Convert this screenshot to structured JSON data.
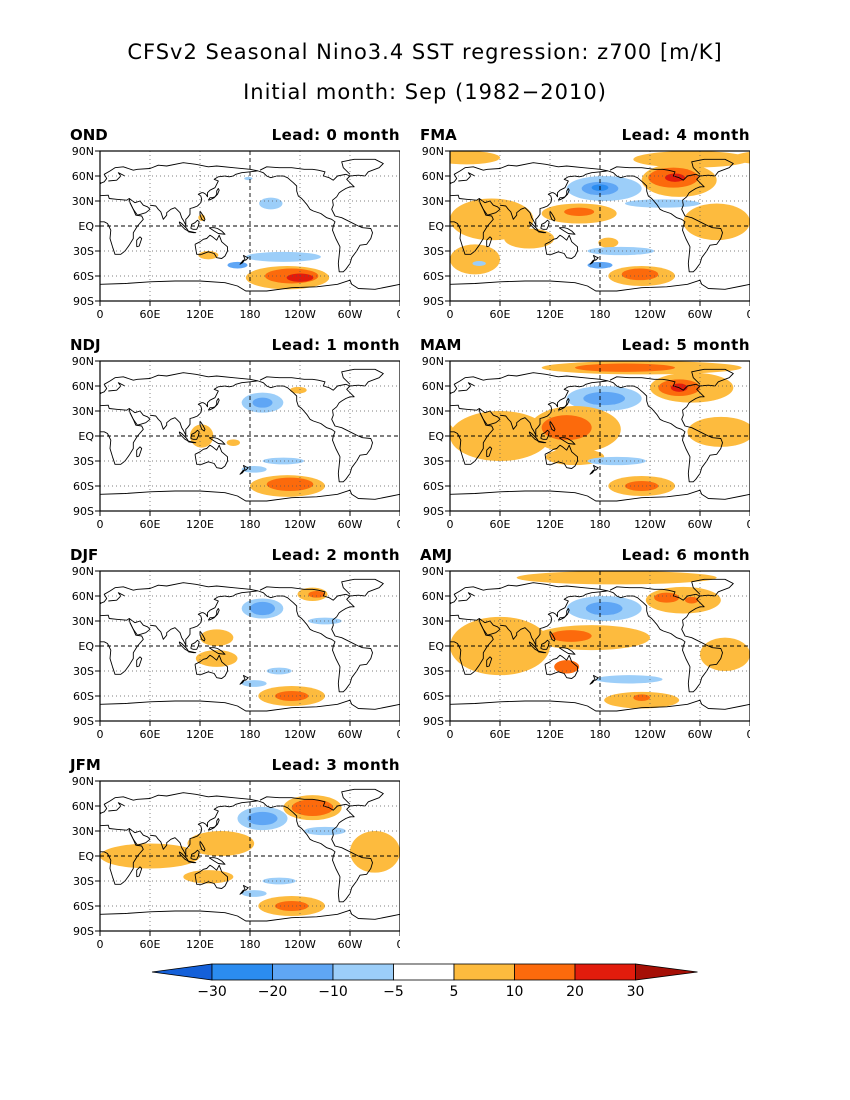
{
  "title": {
    "line1": "CFSv2 Seasonal Nino3.4 SST regression: z700 [m/K]",
    "line2": "Initial month: Sep (1982−2010)"
  },
  "panels": [
    {
      "season": "OND",
      "lead": "Lead: 0 month",
      "blobs": [
        {
          "lon": 178,
          "lat": 57,
          "rx": 5,
          "ry": 2,
          "level": -5
        },
        {
          "lon": 205,
          "lat": 27,
          "rx": 14,
          "ry": 7,
          "level": -5
        },
        {
          "lon": 122,
          "lat": 10,
          "rx": 4,
          "ry": 4,
          "level": 5
        },
        {
          "lon": 130,
          "lat": -35,
          "rx": 12,
          "ry": 5,
          "level": 5
        },
        {
          "lon": 220,
          "lat": -37,
          "rx": 45,
          "ry": 6,
          "level": -5
        },
        {
          "lon": 165,
          "lat": -47,
          "rx": 12,
          "ry": 4,
          "level": -10
        },
        {
          "lon": 225,
          "lat": -62,
          "rx": 50,
          "ry": 14,
          "level": 5
        },
        {
          "lon": 230,
          "lat": -60,
          "rx": 32,
          "ry": 9,
          "level": 10
        },
        {
          "lon": 240,
          "lat": -62,
          "rx": 16,
          "ry": 5,
          "level": 20
        }
      ]
    },
    {
      "season": "FMA",
      "lead": "Lead: 4 month",
      "blobs": [
        {
          "lon": 20,
          "lat": 82,
          "rx": 40,
          "ry": 8,
          "level": 5
        },
        {
          "lon": 290,
          "lat": 80,
          "rx": 70,
          "ry": 10,
          "level": 5
        },
        {
          "lon": 275,
          "lat": 55,
          "rx": 45,
          "ry": 20,
          "level": 5
        },
        {
          "lon": 268,
          "lat": 58,
          "rx": 30,
          "ry": 12,
          "level": 10
        },
        {
          "lon": 270,
          "lat": 58,
          "rx": 12,
          "ry": 5,
          "level": 20
        },
        {
          "lon": 185,
          "lat": 45,
          "rx": 45,
          "ry": 15,
          "level": -5
        },
        {
          "lon": 180,
          "lat": 45,
          "rx": 22,
          "ry": 8,
          "level": -10
        },
        {
          "lon": 180,
          "lat": 46,
          "rx": 10,
          "ry": 4,
          "level": -20
        },
        {
          "lon": 255,
          "lat": 27,
          "rx": 45,
          "ry": 5,
          "level": -5
        },
        {
          "lon": 50,
          "lat": 8,
          "rx": 50,
          "ry": 25,
          "level": 5
        },
        {
          "lon": 155,
          "lat": 15,
          "rx": 45,
          "ry": 12,
          "level": 5
        },
        {
          "lon": 155,
          "lat": 17,
          "rx": 18,
          "ry": 5,
          "level": 10
        },
        {
          "lon": 320,
          "lat": 5,
          "rx": 40,
          "ry": 22,
          "level": 5
        },
        {
          "lon": 30,
          "lat": -40,
          "rx": 30,
          "ry": 18,
          "level": 5
        },
        {
          "lon": 95,
          "lat": -15,
          "rx": 30,
          "ry": 12,
          "level": 5
        },
        {
          "lon": 190,
          "lat": -20,
          "rx": 12,
          "ry": 6,
          "level": 5
        },
        {
          "lon": 205,
          "lat": -30,
          "rx": 40,
          "ry": 5,
          "level": -5
        },
        {
          "lon": 35,
          "lat": -45,
          "rx": 8,
          "ry": 3,
          "level": -5
        },
        {
          "lon": 180,
          "lat": -47,
          "rx": 15,
          "ry": 4,
          "level": -10
        },
        {
          "lon": 230,
          "lat": -60,
          "rx": 40,
          "ry": 12,
          "level": 5
        },
        {
          "lon": 228,
          "lat": -58,
          "rx": 22,
          "ry": 7,
          "level": 10
        }
      ]
    },
    {
      "season": "NDJ",
      "lead": "Lead: 1 month",
      "blobs": [
        {
          "lon": 238,
          "lat": 55,
          "rx": 10,
          "ry": 4,
          "level": 5
        },
        {
          "lon": 195,
          "lat": 40,
          "rx": 25,
          "ry": 12,
          "level": -5
        },
        {
          "lon": 195,
          "lat": 40,
          "rx": 12,
          "ry": 6,
          "level": -10
        },
        {
          "lon": 122,
          "lat": 0,
          "rx": 14,
          "ry": 14,
          "level": 5
        },
        {
          "lon": 160,
          "lat": -8,
          "rx": 8,
          "ry": 4,
          "level": 5
        },
        {
          "lon": 220,
          "lat": -30,
          "rx": 25,
          "ry": 4,
          "level": -5
        },
        {
          "lon": 185,
          "lat": -40,
          "rx": 15,
          "ry": 4,
          "level": -5
        },
        {
          "lon": 225,
          "lat": -60,
          "rx": 45,
          "ry": 13,
          "level": 5
        },
        {
          "lon": 228,
          "lat": -58,
          "rx": 28,
          "ry": 8,
          "level": 10
        }
      ]
    },
    {
      "season": "MAM",
      "lead": "Lead: 5 month",
      "blobs": [
        {
          "lon": 230,
          "lat": 82,
          "rx": 120,
          "ry": 8,
          "level": 5
        },
        {
          "lon": 210,
          "lat": 82,
          "rx": 60,
          "ry": 5,
          "level": 10
        },
        {
          "lon": 290,
          "lat": 58,
          "rx": 50,
          "ry": 18,
          "level": 5
        },
        {
          "lon": 275,
          "lat": 58,
          "rx": 25,
          "ry": 10,
          "level": 10
        },
        {
          "lon": 275,
          "lat": 58,
          "rx": 10,
          "ry": 5,
          "level": 20
        },
        {
          "lon": 185,
          "lat": 45,
          "rx": 45,
          "ry": 15,
          "level": -5
        },
        {
          "lon": 185,
          "lat": 45,
          "rx": 25,
          "ry": 8,
          "level": -10
        },
        {
          "lon": 60,
          "lat": 0,
          "rx": 60,
          "ry": 30,
          "level": 5
        },
        {
          "lon": 150,
          "lat": 8,
          "rx": 55,
          "ry": 28,
          "level": 5
        },
        {
          "lon": 140,
          "lat": 10,
          "rx": 30,
          "ry": 15,
          "level": 10
        },
        {
          "lon": 325,
          "lat": 5,
          "rx": 40,
          "ry": 18,
          "level": 5
        },
        {
          "lon": 150,
          "lat": -25,
          "rx": 35,
          "ry": 10,
          "level": 5
        },
        {
          "lon": 200,
          "lat": -30,
          "rx": 35,
          "ry": 5,
          "level": -5
        },
        {
          "lon": 230,
          "lat": -60,
          "rx": 40,
          "ry": 12,
          "level": 5
        },
        {
          "lon": 230,
          "lat": -60,
          "rx": 20,
          "ry": 6,
          "level": 10
        }
      ]
    },
    {
      "season": "DJF",
      "lead": "Lead: 2 month",
      "blobs": [
        {
          "lon": 255,
          "lat": 62,
          "rx": 18,
          "ry": 8,
          "level": 5
        },
        {
          "lon": 260,
          "lat": 62,
          "rx": 10,
          "ry": 4,
          "level": 10
        },
        {
          "lon": 195,
          "lat": 45,
          "rx": 25,
          "ry": 12,
          "level": -5
        },
        {
          "lon": 195,
          "lat": 45,
          "rx": 15,
          "ry": 8,
          "level": -10
        },
        {
          "lon": 270,
          "lat": 30,
          "rx": 20,
          "ry": 4,
          "level": -5
        },
        {
          "lon": 140,
          "lat": 10,
          "rx": 20,
          "ry": 10,
          "level": 5
        },
        {
          "lon": 140,
          "lat": -15,
          "rx": 25,
          "ry": 10,
          "level": 5
        },
        {
          "lon": 215,
          "lat": -30,
          "rx": 15,
          "ry": 4,
          "level": -5
        },
        {
          "lon": 185,
          "lat": -45,
          "rx": 15,
          "ry": 4,
          "level": -5
        },
        {
          "lon": 230,
          "lat": -60,
          "rx": 40,
          "ry": 12,
          "level": 5
        },
        {
          "lon": 230,
          "lat": -60,
          "rx": 20,
          "ry": 6,
          "level": 10
        }
      ]
    },
    {
      "season": "AMJ",
      "lead": "Lead: 6 month",
      "blobs": [
        {
          "lon": 200,
          "lat": 82,
          "rx": 120,
          "ry": 8,
          "level": 5
        },
        {
          "lon": 280,
          "lat": 55,
          "rx": 45,
          "ry": 16,
          "level": 5
        },
        {
          "lon": 260,
          "lat": 58,
          "rx": 15,
          "ry": 6,
          "level": 10
        },
        {
          "lon": 290,
          "lat": 55,
          "rx": 8,
          "ry": 4,
          "level": 10
        },
        {
          "lon": 185,
          "lat": 45,
          "rx": 45,
          "ry": 15,
          "level": -5
        },
        {
          "lon": 185,
          "lat": 45,
          "rx": 22,
          "ry": 8,
          "level": -10
        },
        {
          "lon": 60,
          "lat": 0,
          "rx": 60,
          "ry": 35,
          "level": 5
        },
        {
          "lon": 170,
          "lat": 10,
          "rx": 70,
          "ry": 15,
          "level": 5
        },
        {
          "lon": 145,
          "lat": 12,
          "rx": 25,
          "ry": 7,
          "level": 10
        },
        {
          "lon": 140,
          "lat": -25,
          "rx": 15,
          "ry": 8,
          "level": 10
        },
        {
          "lon": 330,
          "lat": -10,
          "rx": 30,
          "ry": 20,
          "level": 5
        },
        {
          "lon": 215,
          "lat": -40,
          "rx": 40,
          "ry": 5,
          "level": -5
        },
        {
          "lon": 230,
          "lat": -65,
          "rx": 45,
          "ry": 10,
          "level": 5
        },
        {
          "lon": 230,
          "lat": -62,
          "rx": 10,
          "ry": 4,
          "level": 10
        }
      ]
    },
    {
      "season": "JFM",
      "lead": "Lead: 3 month",
      "blobs": [
        {
          "lon": 255,
          "lat": 58,
          "rx": 35,
          "ry": 15,
          "level": 5
        },
        {
          "lon": 255,
          "lat": 58,
          "rx": 25,
          "ry": 10,
          "level": 10
        },
        {
          "lon": 195,
          "lat": 45,
          "rx": 30,
          "ry": 14,
          "level": -5
        },
        {
          "lon": 195,
          "lat": 45,
          "rx": 18,
          "ry": 8,
          "level": -10
        },
        {
          "lon": 270,
          "lat": 30,
          "rx": 25,
          "ry": 5,
          "level": -5
        },
        {
          "lon": 60,
          "lat": 0,
          "rx": 60,
          "ry": 15,
          "level": 5
        },
        {
          "lon": 145,
          "lat": 15,
          "rx": 40,
          "ry": 15,
          "level": 5
        },
        {
          "lon": 130,
          "lat": -25,
          "rx": 30,
          "ry": 8,
          "level": 5
        },
        {
          "lon": 330,
          "lat": 5,
          "rx": 30,
          "ry": 25,
          "level": 5
        },
        {
          "lon": 215,
          "lat": -30,
          "rx": 20,
          "ry": 4,
          "level": -5
        },
        {
          "lon": 185,
          "lat": -45,
          "rx": 15,
          "ry": 4,
          "level": -5
        },
        {
          "lon": 230,
          "lat": -60,
          "rx": 40,
          "ry": 12,
          "level": 5
        },
        {
          "lon": 230,
          "lat": -60,
          "rx": 20,
          "ry": 6,
          "level": 10
        }
      ]
    }
  ],
  "axes": {
    "x_ticks": [
      "0",
      "60E",
      "120E",
      "180",
      "120W",
      "60W",
      "0"
    ],
    "y_ticks": [
      "90N",
      "60N",
      "30N",
      "EQ",
      "30S",
      "60S",
      "90S"
    ]
  },
  "colorbar": {
    "labels": [
      "−30",
      "−20",
      "−10",
      "−5",
      "5",
      "10",
      "20",
      "30"
    ],
    "colors": [
      "#1e6fe6",
      "#2b8cf0",
      "#5fa6f5",
      "#9ccef9",
      "#ffffff",
      "#fdbb3e",
      "#fc6a0c",
      "#e21c0c",
      "#a50f06"
    ],
    "neg_end_color": "#1460d9",
    "pos_end_color": "#a50f06"
  },
  "chart_data": {
    "type": "heatmap",
    "title": "CFSv2 Seasonal Nino3.4 SST regression: z700 [m/K]",
    "subtitle": "Initial month: Sep (1982−2010)",
    "xlim": [
      0,
      360
    ],
    "ylim": [
      -90,
      90
    ],
    "x_ticks": [
      "0",
      "60E",
      "120E",
      "180",
      "120W",
      "60W",
      "0"
    ],
    "y_ticks": [
      "90N",
      "60N",
      "30N",
      "EQ",
      "30S",
      "60S",
      "90S"
    ],
    "contour_levels": [
      -30,
      -20,
      -10,
      -5,
      5,
      10,
      20,
      30
    ],
    "grid": true,
    "panels": [
      "OND Lead: 0 month",
      "FMA Lead: 4 month",
      "NDJ Lead: 1 month",
      "MAM Lead: 5 month",
      "DJF Lead: 2 month",
      "AMJ Lead: 6 month",
      "JFM Lead: 3 month"
    ]
  }
}
